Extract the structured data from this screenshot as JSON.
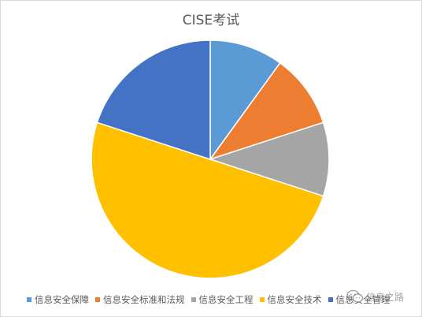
{
  "chart_data": {
    "type": "pie",
    "title": "CISE考试",
    "categories": [
      "信息安全保障",
      "信息安全标准和法规",
      "信息安全工程",
      "信息安全技术",
      "信息安全管理"
    ],
    "values": [
      10,
      10,
      10,
      50,
      20
    ],
    "colors": [
      "#5b9bd5",
      "#ed7d31",
      "#a5a5a5",
      "#ffc000",
      "#4472c4"
    ],
    "start_angle_deg": 0,
    "direction": "clockwise",
    "legend_position": "bottom"
  },
  "watermark": {
    "text": "信息之路",
    "icon": "wechat-icon"
  }
}
